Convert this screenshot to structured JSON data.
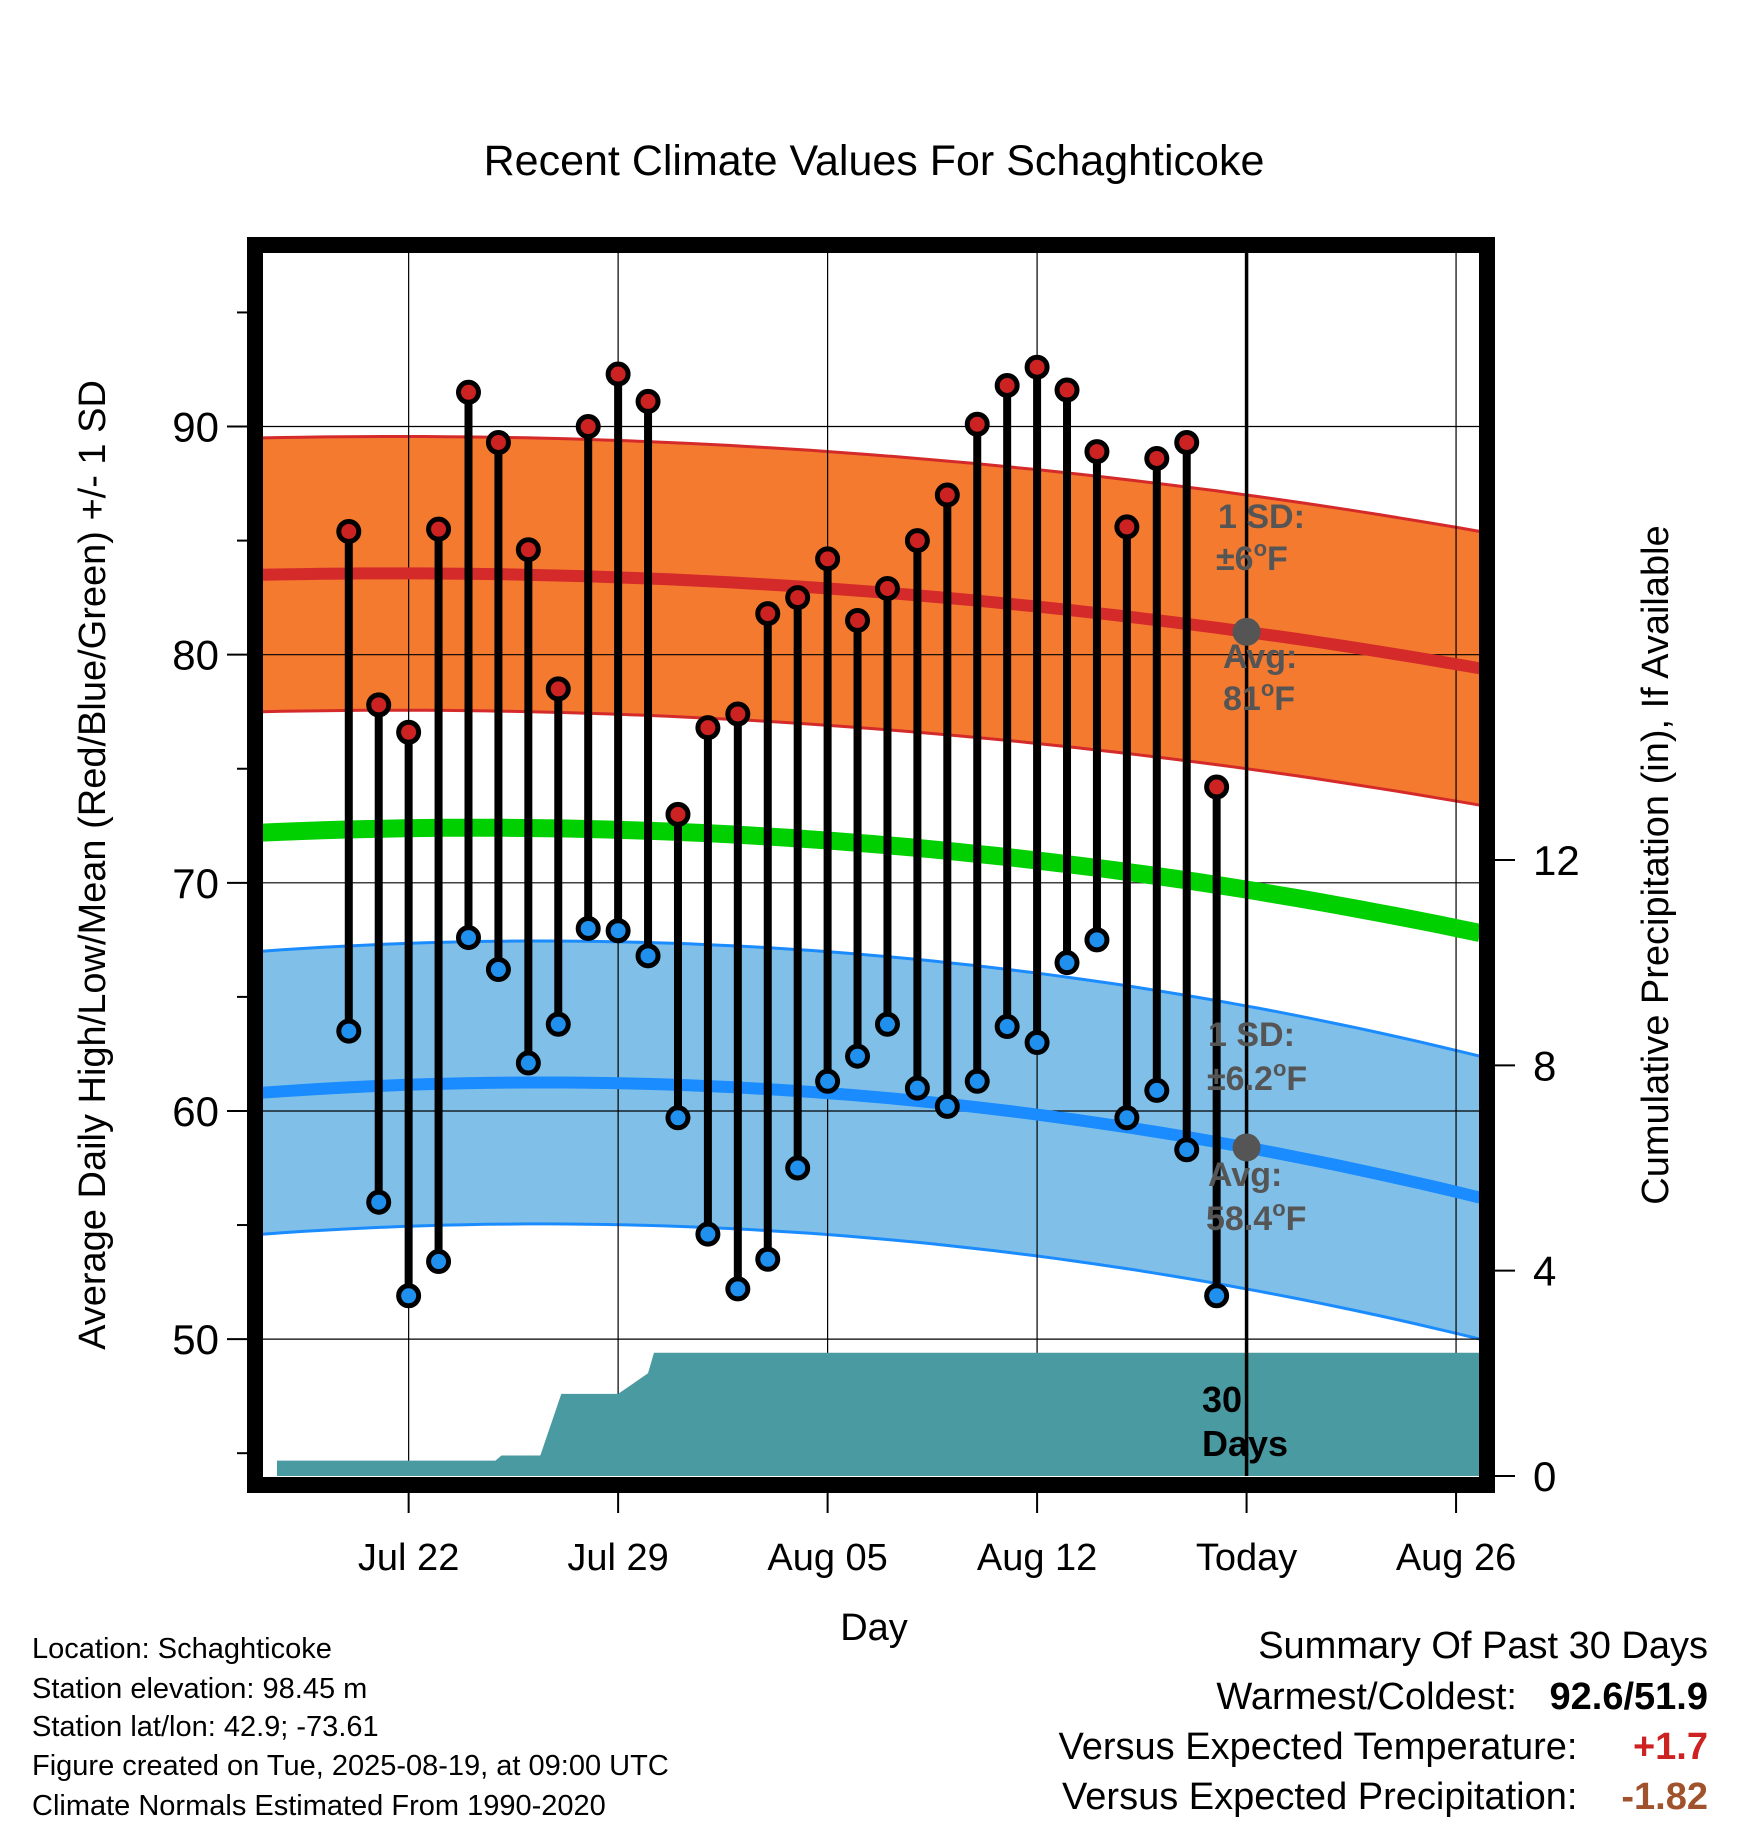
{
  "chart_data": {
    "type": "line",
    "title": "Recent Climate Values For Schaghticoke",
    "xlabel": "Day",
    "ylabel": "Average Daily High/Low/Mean (Red/Blue/Green) +/- 1 SD",
    "y2label": "Cumulative Precipitation (in), If Available",
    "ylim": [
      44.0,
      98.0
    ],
    "y2lim": [
      0,
      24
    ],
    "yticks": [
      50,
      60,
      70,
      80,
      90
    ],
    "y2ticks": [
      0,
      4,
      8,
      12
    ],
    "xrange_day": [
      -32.9,
      7.8
    ],
    "xticks": [
      {
        "day": -28,
        "label": "Jul 22"
      },
      {
        "day": -21,
        "label": "Jul 29"
      },
      {
        "day": -14,
        "label": "Aug 05"
      },
      {
        "day": -7,
        "label": "Aug 12"
      },
      {
        "day": 0,
        "label": "Today"
      },
      {
        "day": 7,
        "label": "Aug 26"
      }
    ],
    "daily_high": [
      85.4,
      77.8,
      76.6,
      85.5,
      91.5,
      89.3,
      84.6,
      78.5,
      90.0,
      92.3,
      91.1,
      73.0,
      76.8,
      77.4,
      81.8,
      82.5,
      84.2,
      81.5,
      82.9,
      85.0,
      87.0,
      90.1,
      91.8,
      92.6,
      91.6,
      88.9,
      85.6,
      88.6,
      89.3,
      74.2
    ],
    "daily_low": [
      63.5,
      56.0,
      51.9,
      53.4,
      67.6,
      66.2,
      62.1,
      63.8,
      68.0,
      67.9,
      66.8,
      59.7,
      54.6,
      52.2,
      53.5,
      57.5,
      61.3,
      62.4,
      63.8,
      61.0,
      60.2,
      61.3,
      63.7,
      63.0,
      66.5,
      67.5,
      59.7,
      60.9,
      58.3,
      51.9
    ],
    "normal_high_avg": {
      "start": 83.5,
      "today": 81.0,
      "end": 79.4
    },
    "normal_high_sd": 6,
    "normal_low_avg": {
      "start": 60.8,
      "today": 58.4,
      "end": 56.2
    },
    "normal_low_sd": 6.2,
    "normal_mean": {
      "start": 72.2,
      "today": 69.7,
      "end": 67.8
    },
    "precip_cumulative": [
      {
        "day": -32.4,
        "value": 0.3
      },
      {
        "day": -27.5,
        "value": 0.3
      },
      {
        "day": -25.1,
        "value": 0.3
      },
      {
        "day": -24.9,
        "value": 0.4
      },
      {
        "day": -23.6,
        "value": 0.4
      },
      {
        "day": -22.9,
        "value": 1.6
      },
      {
        "day": -21.0,
        "value": 1.6
      },
      {
        "day": -20.0,
        "value": 2.0
      },
      {
        "day": -19.8,
        "value": 2.4
      },
      {
        "day": 7.8,
        "value": 2.4
      }
    ],
    "annotations": {
      "high_sd_label": "1 SD:",
      "high_sd_value": "±6°F",
      "high_avg_label": "Avg:",
      "high_avg_value": "81°F",
      "low_sd_label": "1 SD:",
      "low_sd_value": "±6.2°F",
      "low_avg_label": "Avg:",
      "low_avg_value": "58.4°F",
      "window_line1": "30",
      "window_line2": "Days"
    },
    "colors": {
      "high_band": "#f47a30",
      "high_line": "#d42a2a",
      "low_band": "#80c0e8",
      "low_line": "#1a8cff",
      "mean_line": "#00d000",
      "precip_fill": "#4a9aa2",
      "high_dot": "#cc2222",
      "low_dot": "#2090ee",
      "avg_dot": "#555555",
      "annotation_text": "#555555"
    }
  },
  "info": {
    "location": "Location: Schaghticoke",
    "elevation": "Station elevation: 98.45 m",
    "latlon": "Station lat/lon: 42.9; -73.61",
    "created": "Figure created on Tue, 2025-08-19, at 09:00 UTC",
    "normals": "Climate Normals Estimated From 1990-2020"
  },
  "summary": {
    "title": "Summary Of Past 30 Days",
    "warm_cold_label": "Warmest/Coldest:",
    "warm_cold_value": "92.6/51.9",
    "temp_label": "Versus Expected Temperature:",
    "temp_value": "+1.7",
    "precip_label": "Versus Expected Precipitation:",
    "precip_value": "-1.82",
    "temp_color": "#cc2222",
    "precip_color": "#a0522d"
  }
}
